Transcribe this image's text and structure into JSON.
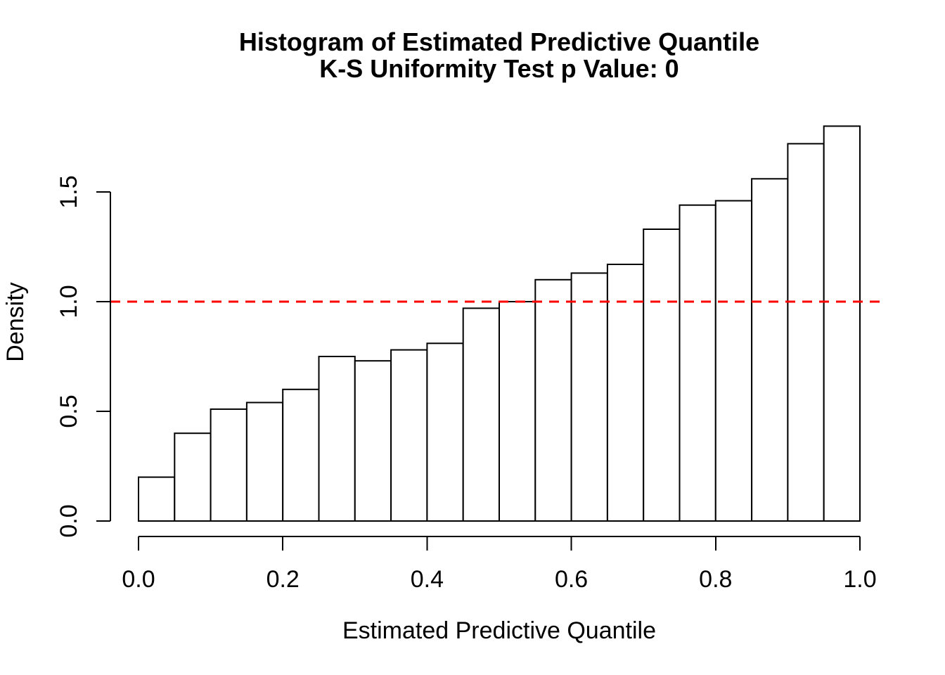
{
  "chart_data": {
    "type": "bar",
    "subtype": "histogram",
    "title": "Histogram of Estimated Predictive Quantile",
    "subtitle": "K-S Uniformity Test p Value: 0",
    "xlabel": "Estimated Predictive Quantile",
    "ylabel": "Density",
    "xlim": [
      0.0,
      1.0
    ],
    "ylim": [
      0.0,
      1.5
    ],
    "x_tick_labels": [
      "0.0",
      "0.2",
      "0.4",
      "0.6",
      "0.8",
      "1.0"
    ],
    "y_tick_labels": [
      "0.0",
      "0.5",
      "1.0",
      "1.5"
    ],
    "bin_start": 0.0,
    "bin_width": 0.05,
    "values": [
      0.2,
      0.4,
      0.51,
      0.54,
      0.6,
      0.75,
      0.73,
      0.78,
      0.81,
      0.97,
      1.0,
      1.1,
      1.13,
      1.17,
      1.33,
      1.44,
      1.46,
      1.56,
      1.72,
      1.8
    ],
    "reference_line": {
      "y": 1.0,
      "color": "#FF0000",
      "style": "dashed"
    },
    "bar_fill": "#FFFFFF",
    "bar_stroke": "#000000",
    "axis_color": "#000000",
    "grid": "off",
    "legend": "none"
  }
}
